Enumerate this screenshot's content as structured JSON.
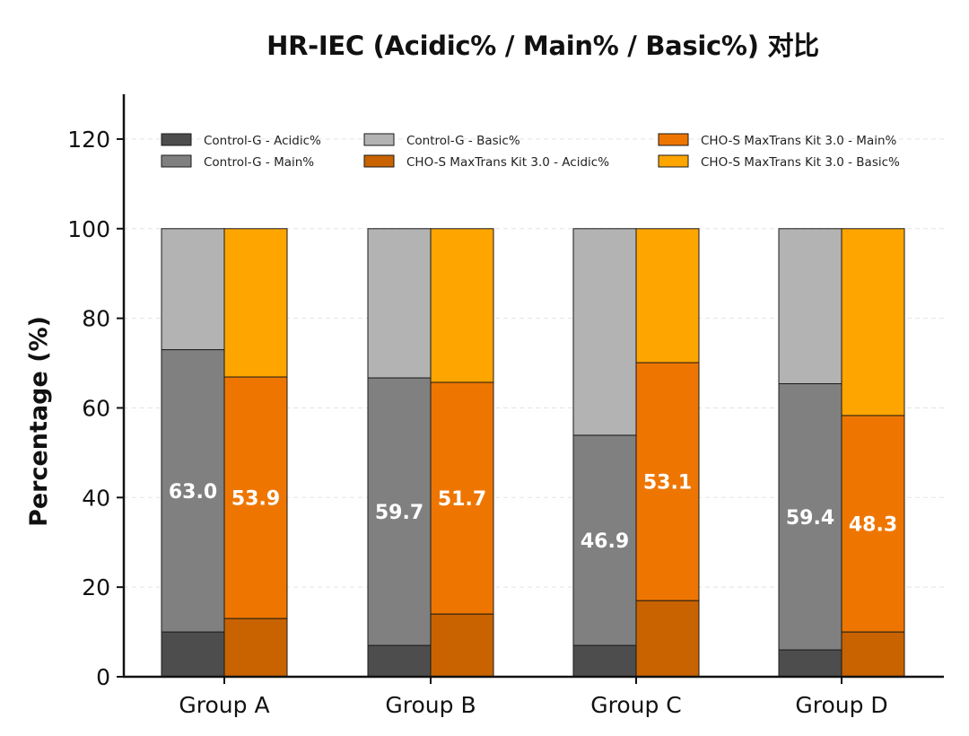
{
  "chart_data": {
    "type": "bar",
    "stacked": true,
    "title": "HR-IEC (Acidic% / Main% / Basic%) 对比",
    "xlabel": "",
    "ylabel": "Percentage (%)",
    "ylim": [
      0,
      130
    ],
    "yticks": [
      "0",
      "20",
      "40",
      "60",
      "80",
      "100",
      "120"
    ],
    "categories": [
      "Group A",
      "Group B",
      "Group C",
      "Group D"
    ],
    "grid": "horizontal dashed, light",
    "legend_position": "top",
    "groups": [
      {
        "name": "Control-G",
        "series": [
          {
            "name": "Control-G - Acidic%",
            "values": [
              10,
              7,
              7,
              6
            ],
            "color": "#4d4d4d"
          },
          {
            "name": "Control-G - Main%",
            "values": [
              63.0,
              59.7,
              46.9,
              59.4
            ],
            "color": "#808080"
          },
          {
            "name": "Control-G - Basic%",
            "values": [
              27,
              33.3,
              46.1,
              34.6
            ],
            "color": "#b3b3b3"
          }
        ],
        "labels": [
          "63.0",
          "59.7",
          "46.9",
          "59.4"
        ]
      },
      {
        "name": "CHO-S MaxTrans Kit 3.0",
        "series": [
          {
            "name": "CHO-S MaxTrans Kit 3.0 - Acidic%",
            "values": [
              13,
              14,
              17,
              10
            ],
            "color": "#c96300"
          },
          {
            "name": "CHO-S MaxTrans Kit 3.0 - Main%",
            "values": [
              53.9,
              51.7,
              53.1,
              48.3
            ],
            "color": "#ee7600"
          },
          {
            "name": "CHO-S MaxTrans Kit 3.0 - Basic%",
            "values": [
              33.1,
              34.3,
              29.9,
              41.7
            ],
            "color": "#ffa500"
          }
        ],
        "labels": [
          "53.9",
          "51.7",
          "53.1",
          "48.3"
        ]
      }
    ],
    "legend": [
      "Control-G - Acidic%",
      "Control-G - Main%",
      "Control-G - Basic%",
      "CHO-S MaxTrans Kit 3.0 - Acidic%",
      "CHO-S MaxTrans Kit 3.0 - Main%",
      "CHO-S MaxTrans Kit 3.0 - Basic%"
    ]
  }
}
